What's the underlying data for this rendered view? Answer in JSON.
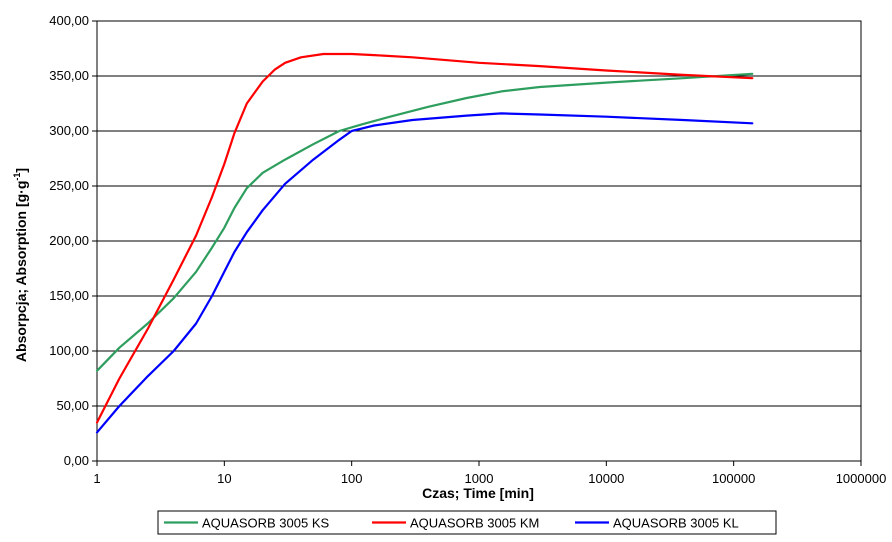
{
  "chart_data": {
    "type": "line",
    "xlabel": "Czas; Time [min]",
    "ylabel_main": "Absorpcja; Absorption [g·g",
    "ylabel_sup": "-1",
    "ylabel_end": "]",
    "x_scale": "log",
    "xlim": [
      1,
      1000000
    ],
    "ylim": [
      0,
      400
    ],
    "x_ticks": [
      "1",
      "10",
      "100",
      "1000",
      "10000",
      "100000",
      "1000000"
    ],
    "y_ticks": [
      "0,00",
      "50,00",
      "100,00",
      "150,00",
      "200,00",
      "250,00",
      "300,00",
      "350,00",
      "400,00"
    ],
    "grid": "horizontal",
    "legend_position": "bottom",
    "series": [
      {
        "name": "AQUASORB 3005 KS",
        "color": "#2e9e5e",
        "x": [
          1,
          1.5,
          2.5,
          4,
          6,
          8,
          10,
          12,
          15,
          20,
          30,
          50,
          80,
          120,
          200,
          400,
          800,
          1500,
          3000,
          10000,
          40000,
          140000
        ],
        "y": [
          82,
          103,
          125,
          148,
          172,
          194,
          212,
          230,
          248,
          262,
          274,
          288,
          300,
          306,
          313,
          322,
          330,
          336,
          340,
          344,
          348,
          352
        ]
      },
      {
        "name": "AQUASORB 3005 KM",
        "color": "#ff0000",
        "x": [
          1,
          1.5,
          2.5,
          4,
          6,
          8,
          10,
          12,
          15,
          20,
          25,
          30,
          40,
          60,
          80,
          100,
          150,
          300,
          1000,
          3000,
          10000,
          40000,
          140000
        ],
        "y": [
          35,
          75,
          120,
          165,
          205,
          240,
          270,
          298,
          325,
          345,
          356,
          362,
          367,
          370,
          370,
          370,
          369,
          367,
          362,
          359,
          355,
          351,
          348
        ]
      },
      {
        "name": "AQUASORB 3005 KL",
        "color": "#0000ff",
        "x": [
          1,
          1.5,
          2.5,
          4,
          6,
          8,
          10,
          12,
          15,
          20,
          30,
          50,
          80,
          100,
          150,
          300,
          800,
          1500,
          3000,
          10000,
          40000,
          140000
        ],
        "y": [
          26,
          50,
          77,
          100,
          125,
          150,
          172,
          190,
          208,
          228,
          252,
          274,
          292,
          300,
          305,
          310,
          314,
          316,
          315,
          313,
          310,
          307
        ]
      }
    ]
  }
}
